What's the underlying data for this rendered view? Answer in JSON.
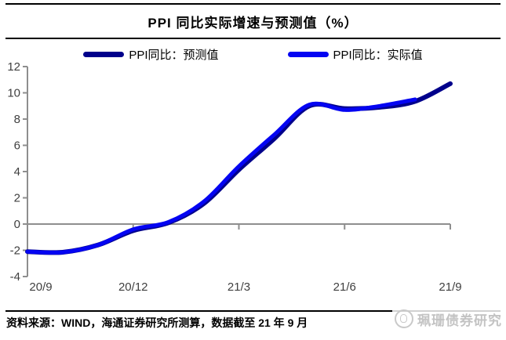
{
  "title": "PPI 同比实际增速与预测值（%）",
  "legend": [
    {
      "label": "PPI同比：预测值",
      "color": "#00008B"
    },
    {
      "label": "PPI同比：实际值",
      "color": "#0404F2"
    }
  ],
  "footer": {
    "source_text": "资料来源：WIND，海通证券研究所测算，数据截至 21 年 9 月",
    "watermark": "珮珊债券研究"
  },
  "chart_data": {
    "type": "line",
    "title": "PPI 同比实际增速与预测值（%）",
    "x_labels": [
      "20/9",
      "20/12",
      "21/3",
      "21/6",
      "21/9"
    ],
    "x_tick_months": [
      0,
      3,
      6,
      9,
      12
    ],
    "months": [
      "20/9",
      "20/10",
      "20/11",
      "20/12",
      "21/1",
      "21/2",
      "21/3",
      "21/4",
      "21/5",
      "21/6",
      "21/7",
      "21/8",
      "21/9"
    ],
    "series": [
      {
        "key": "forecast",
        "name": "PPI同比：预测值",
        "color": "#00008B",
        "values": [
          -2.1,
          -2.15,
          -1.6,
          -0.5,
          0.1,
          1.55,
          4.15,
          6.5,
          9.0,
          8.8,
          8.9,
          9.35,
          10.7
        ]
      },
      {
        "key": "actual",
        "name": "PPI同比：实际值",
        "color": "#0404F2",
        "values": [
          -2.1,
          -2.15,
          -1.6,
          -0.4,
          0.15,
          1.7,
          4.4,
          6.8,
          9.1,
          8.7,
          9.0,
          9.5,
          null
        ]
      }
    ],
    "ylim": [
      -4,
      12
    ],
    "ytick_step": 2,
    "yticks": [
      -4,
      -2,
      0,
      2,
      4,
      6,
      8,
      10,
      12
    ],
    "legend_position": "top",
    "grid": false,
    "axis_color": "#8e8e8e",
    "tick_label_color": "#3f3f3f"
  }
}
